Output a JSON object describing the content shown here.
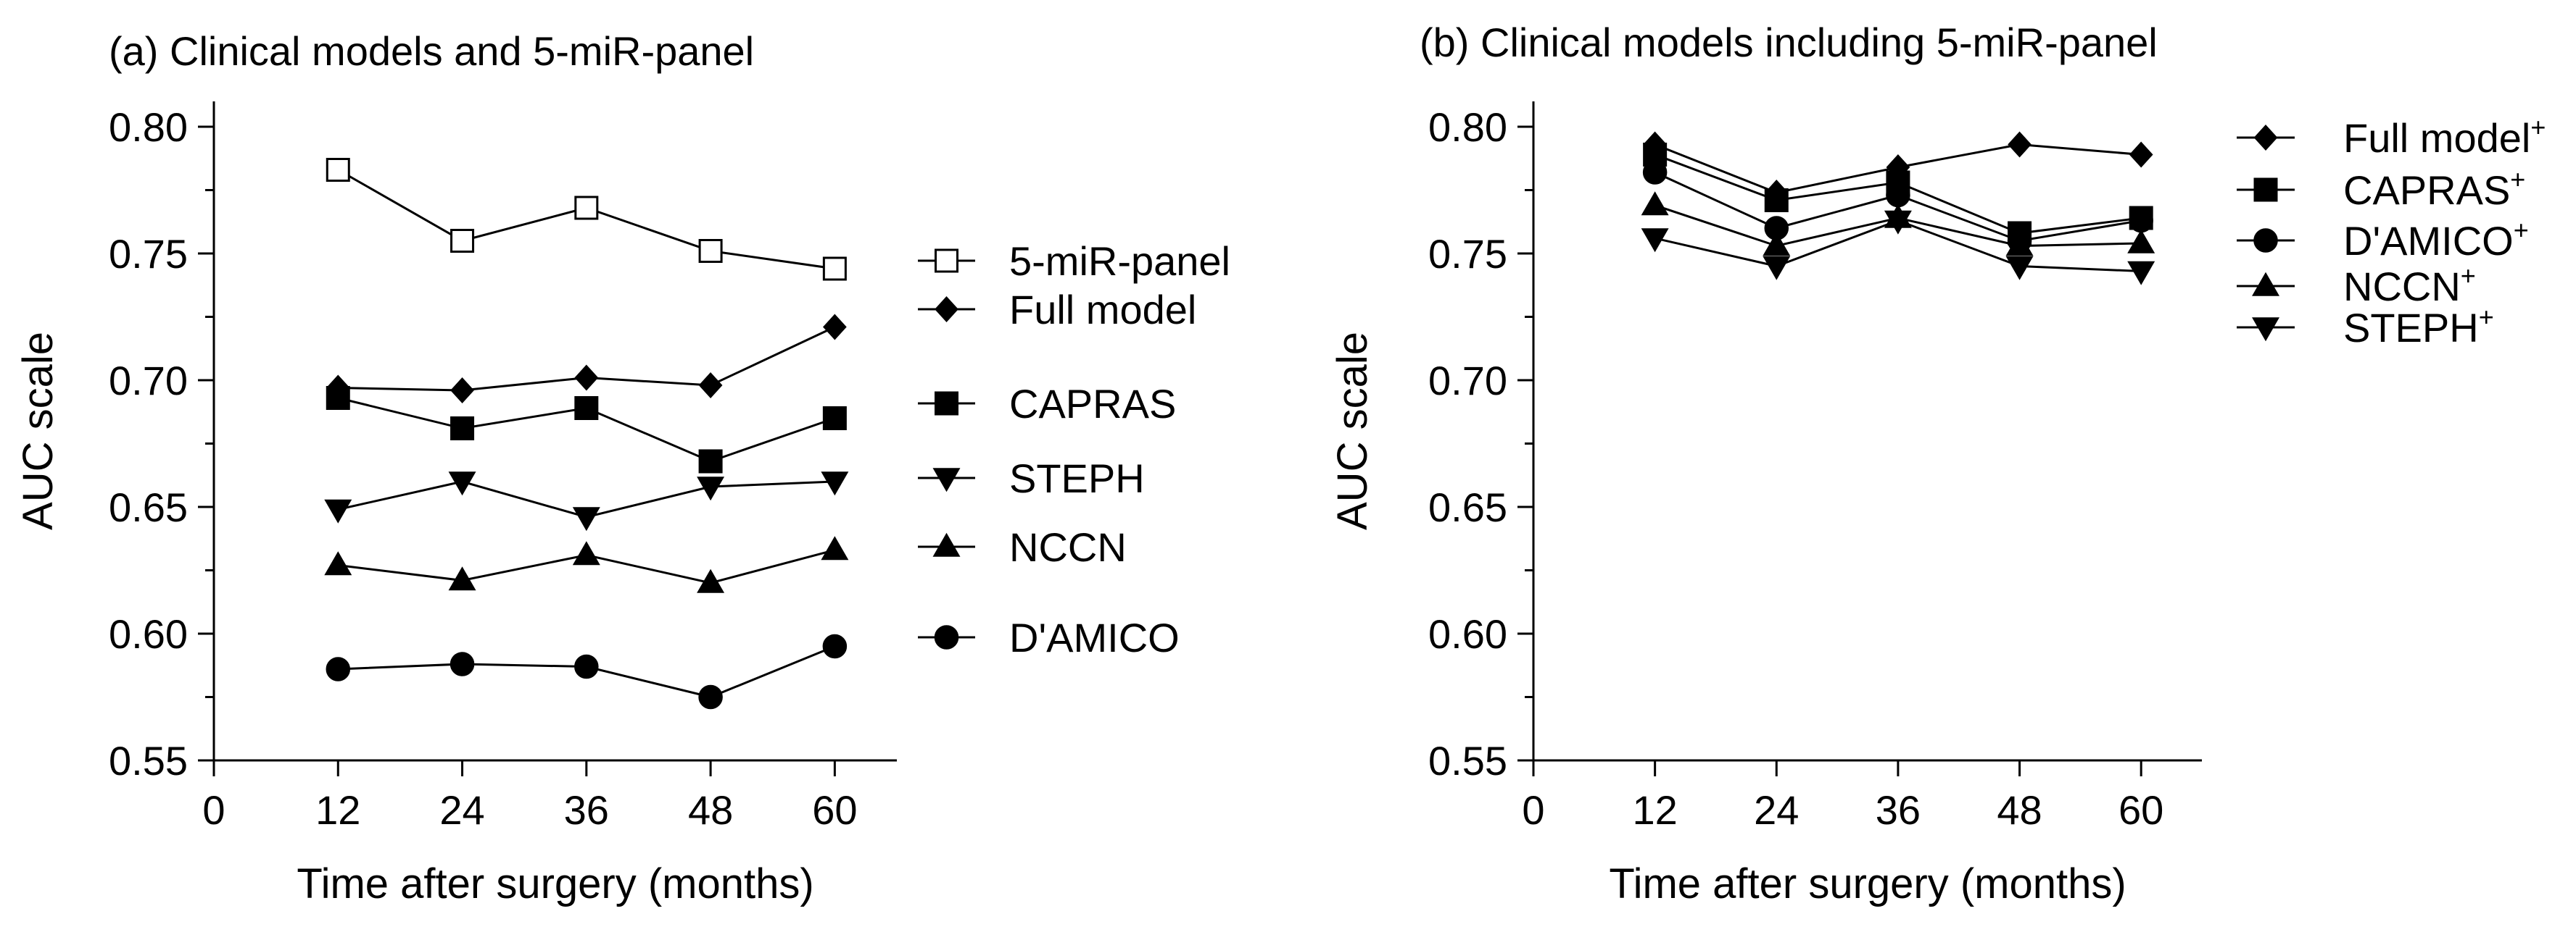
{
  "chart_data": [
    {
      "type": "line",
      "title": "(a) Clinical models and 5-miR-panel",
      "xlabel": "Time after surgery (months)",
      "ylabel": "AUC scale",
      "xlim": [
        0,
        66
      ],
      "ylim": [
        0.55,
        0.81
      ],
      "x_ticks": [
        "0",
        "12",
        "24",
        "36",
        "48",
        "60"
      ],
      "y_ticks": [
        "0.55",
        "0.60",
        "0.65",
        "0.70",
        "0.75",
        "0.80"
      ],
      "x": [
        12,
        24,
        36,
        48,
        60
      ],
      "series": [
        {
          "name": "5-miR-panel",
          "sup": "",
          "marker": "square-open",
          "values": [
            0.783,
            0.755,
            0.768,
            0.751,
            0.744
          ]
        },
        {
          "name": "Full model",
          "sup": "",
          "marker": "diamond",
          "values": [
            0.697,
            0.696,
            0.701,
            0.698,
            0.721
          ]
        },
        {
          "name": "CAPRAS",
          "sup": "",
          "marker": "square",
          "values": [
            0.693,
            0.681,
            0.689,
            0.668,
            0.685
          ]
        },
        {
          "name": "STEPH",
          "sup": "",
          "marker": "triangle-down",
          "values": [
            0.649,
            0.66,
            0.646,
            0.658,
            0.66
          ]
        },
        {
          "name": "NCCN",
          "sup": "",
          "marker": "triangle-up",
          "values": [
            0.627,
            0.621,
            0.631,
            0.62,
            0.633
          ]
        },
        {
          "name": "D'AMICO",
          "sup": "",
          "marker": "circle",
          "values": [
            0.586,
            0.588,
            0.587,
            0.575,
            0.595
          ]
        }
      ]
    },
    {
      "type": "line",
      "title": "(b) Clinical models including 5-miR-panel",
      "xlabel": "Time after surgery (months)",
      "ylabel": "AUC scale",
      "xlim": [
        0,
        66
      ],
      "ylim": [
        0.55,
        0.81
      ],
      "x_ticks": [
        "0",
        "12",
        "24",
        "36",
        "48",
        "60"
      ],
      "y_ticks": [
        "0.55",
        "0.60",
        "0.65",
        "0.70",
        "0.75",
        "0.80"
      ],
      "x": [
        12,
        24,
        36,
        48,
        60
      ],
      "series": [
        {
          "name": "Full model",
          "sup": "+",
          "marker": "diamond",
          "values": [
            0.793,
            0.774,
            0.784,
            0.793,
            0.789
          ]
        },
        {
          "name": "CAPRAS",
          "sup": "+",
          "marker": "square",
          "values": [
            0.789,
            0.771,
            0.778,
            0.758,
            0.764
          ]
        },
        {
          "name": "D'AMICO",
          "sup": "+",
          "marker": "circle",
          "values": [
            0.782,
            0.76,
            0.773,
            0.755,
            0.763
          ]
        },
        {
          "name": "NCCN",
          "sup": "+",
          "marker": "triangle-up",
          "values": [
            0.769,
            0.753,
            0.764,
            0.753,
            0.754
          ]
        },
        {
          "name": "STEPH",
          "sup": "+",
          "marker": "triangle-down",
          "values": [
            0.756,
            0.745,
            0.763,
            0.745,
            0.743
          ]
        }
      ]
    }
  ]
}
